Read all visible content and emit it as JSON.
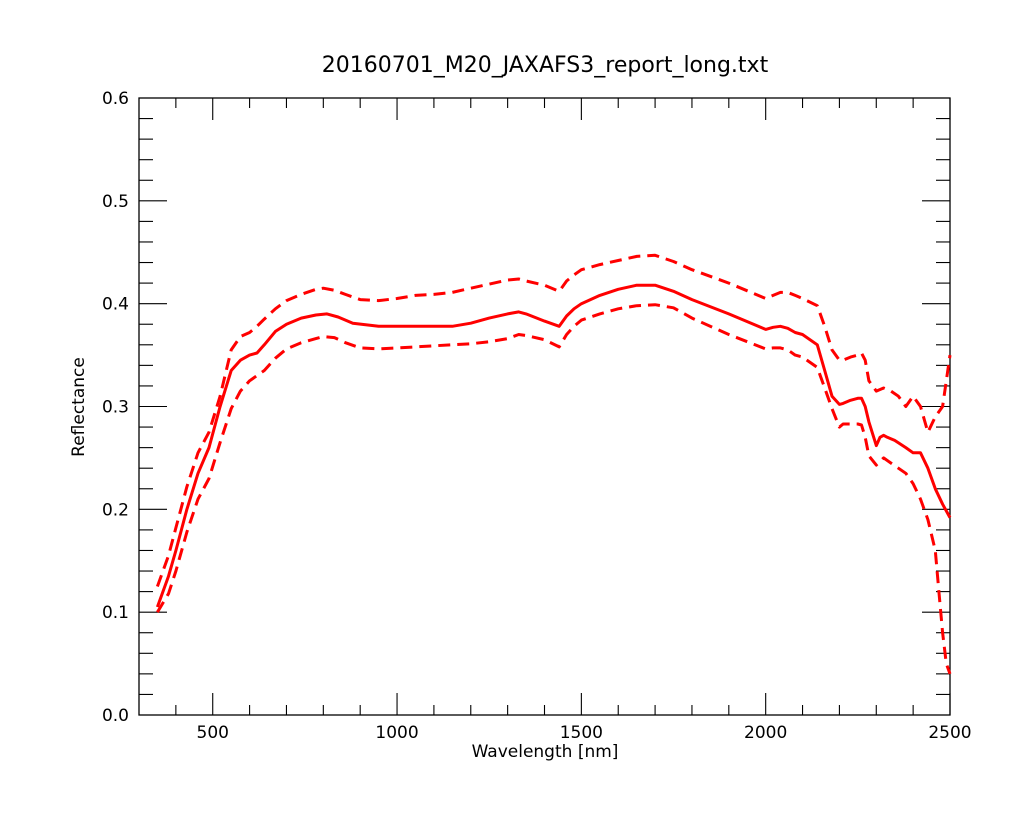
{
  "chart_data": {
    "type": "line",
    "title": "20160701_M20_JAXAFS3_report_long.txt",
    "xlabel": "Wavelength [nm]",
    "ylabel": "Reflectance",
    "xlim": [
      300,
      2500
    ],
    "ylim": [
      0.0,
      0.6
    ],
    "x_ticks": [
      500,
      1000,
      1500,
      2000,
      2500
    ],
    "x_tick_labels": [
      "500",
      "1000",
      "1500",
      "2000",
      "2500"
    ],
    "y_ticks": [
      0.0,
      0.1,
      0.2,
      0.3,
      0.4,
      0.5,
      0.6
    ],
    "y_tick_labels": [
      "0.0",
      "0.1",
      "0.2",
      "0.3",
      "0.4",
      "0.5",
      "0.6"
    ],
    "grid": false,
    "line_color": "#ff0000",
    "series": [
      {
        "style": "solid",
        "x": [
          350,
          380,
          400,
          430,
          460,
          490,
          520,
          550,
          575,
          600,
          620,
          640,
          670,
          700,
          740,
          780,
          810,
          840,
          880,
          950,
          1000,
          1100,
          1150,
          1200,
          1250,
          1300,
          1330,
          1350,
          1400,
          1440,
          1460,
          1480,
          1500,
          1550,
          1600,
          1650,
          1700,
          1750,
          1800,
          1900,
          2000,
          2020,
          2040,
          2060,
          2080,
          2100,
          2140,
          2160,
          2180,
          2200,
          2210,
          2230,
          2250,
          2260,
          2270,
          2280,
          2300,
          2310,
          2320,
          2330,
          2350,
          2380,
          2400,
          2420,
          2440,
          2460,
          2480,
          2500
        ],
        "y": [
          0.105,
          0.135,
          0.16,
          0.2,
          0.235,
          0.26,
          0.3,
          0.335,
          0.345,
          0.35,
          0.352,
          0.36,
          0.373,
          0.38,
          0.386,
          0.389,
          0.39,
          0.387,
          0.381,
          0.378,
          0.378,
          0.378,
          0.378,
          0.381,
          0.386,
          0.39,
          0.392,
          0.39,
          0.383,
          0.378,
          0.388,
          0.395,
          0.4,
          0.408,
          0.414,
          0.418,
          0.418,
          0.412,
          0.404,
          0.39,
          0.375,
          0.377,
          0.378,
          0.376,
          0.372,
          0.37,
          0.36,
          0.335,
          0.31,
          0.302,
          0.303,
          0.306,
          0.308,
          0.308,
          0.3,
          0.285,
          0.262,
          0.27,
          0.272,
          0.27,
          0.267,
          0.26,
          0.255,
          0.255,
          0.24,
          0.22,
          0.205,
          0.192
        ]
      },
      {
        "style": "dashed",
        "x": [
          350,
          380,
          400,
          430,
          460,
          490,
          520,
          550,
          575,
          600,
          620,
          640,
          670,
          700,
          740,
          780,
          800,
          830,
          860,
          900,
          950,
          1000,
          1050,
          1100,
          1150,
          1200,
          1250,
          1300,
          1330,
          1350,
          1400,
          1440,
          1460,
          1480,
          1500,
          1550,
          1600,
          1650,
          1700,
          1750,
          1800,
          1900,
          2000,
          2020,
          2040,
          2060,
          2080,
          2100,
          2140,
          2160,
          2180,
          2200,
          2210,
          2230,
          2250,
          2260,
          2270,
          2280,
          2300,
          2320,
          2340,
          2360,
          2380,
          2400,
          2420,
          2440,
          2460,
          2480,
          2500
        ],
        "y": [
          0.125,
          0.155,
          0.182,
          0.222,
          0.255,
          0.275,
          0.31,
          0.355,
          0.368,
          0.372,
          0.378,
          0.385,
          0.395,
          0.403,
          0.409,
          0.414,
          0.415,
          0.413,
          0.409,
          0.404,
          0.403,
          0.405,
          0.408,
          0.409,
          0.411,
          0.415,
          0.419,
          0.423,
          0.424,
          0.422,
          0.418,
          0.412,
          0.422,
          0.428,
          0.433,
          0.438,
          0.442,
          0.446,
          0.447,
          0.441,
          0.433,
          0.42,
          0.405,
          0.408,
          0.411,
          0.411,
          0.408,
          0.405,
          0.398,
          0.378,
          0.355,
          0.345,
          0.345,
          0.348,
          0.35,
          0.352,
          0.345,
          0.325,
          0.315,
          0.318,
          0.315,
          0.31,
          0.3,
          0.31,
          0.3,
          0.275,
          0.29,
          0.3,
          0.35
        ]
      },
      {
        "style": "dashed",
        "x": [
          350,
          380,
          400,
          430,
          460,
          490,
          520,
          550,
          575,
          600,
          620,
          640,
          670,
          700,
          740,
          780,
          800,
          830,
          860,
          900,
          950,
          1000,
          1050,
          1100,
          1150,
          1200,
          1250,
          1300,
          1330,
          1350,
          1400,
          1440,
          1460,
          1480,
          1500,
          1550,
          1600,
          1650,
          1700,
          1750,
          1800,
          1900,
          2000,
          2020,
          2040,
          2060,
          2080,
          2100,
          2140,
          2160,
          2180,
          2200,
          2210,
          2230,
          2250,
          2260,
          2270,
          2280,
          2300,
          2320,
          2340,
          2360,
          2380,
          2400,
          2420,
          2440,
          2460,
          2470,
          2480,
          2490,
          2500
        ],
        "y": [
          0.1,
          0.118,
          0.14,
          0.178,
          0.21,
          0.23,
          0.265,
          0.298,
          0.315,
          0.325,
          0.33,
          0.335,
          0.347,
          0.356,
          0.362,
          0.366,
          0.368,
          0.367,
          0.362,
          0.357,
          0.356,
          0.357,
          0.358,
          0.359,
          0.36,
          0.361,
          0.363,
          0.366,
          0.37,
          0.369,
          0.365,
          0.358,
          0.37,
          0.378,
          0.384,
          0.39,
          0.395,
          0.398,
          0.399,
          0.396,
          0.386,
          0.37,
          0.356,
          0.357,
          0.357,
          0.355,
          0.35,
          0.348,
          0.338,
          0.318,
          0.298,
          0.28,
          0.283,
          0.283,
          0.283,
          0.282,
          0.27,
          0.252,
          0.243,
          0.25,
          0.245,
          0.24,
          0.235,
          0.225,
          0.21,
          0.19,
          0.16,
          0.12,
          0.08,
          0.05,
          0.04
        ]
      }
    ]
  }
}
